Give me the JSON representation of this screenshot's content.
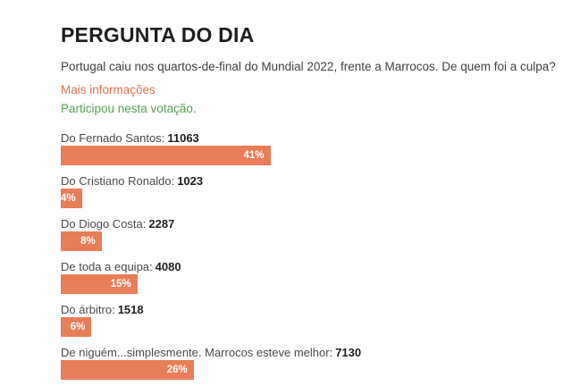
{
  "poll": {
    "title": "PERGUNTA DO DIA",
    "question": "Portugal caiu nos quartos-de-final do Mundial 2022, frente a Marrocos. De quem foi a culpa?",
    "more_info_label": "Mais informações",
    "participation_status": "Participou nesta votação.",
    "options": [
      {
        "label": "Do Fernado Santos:",
        "votes": "11063",
        "percent": 41,
        "percent_label": "41%"
      },
      {
        "label": "Do Cristiano Ronaldo:",
        "votes": "1023",
        "percent": 4,
        "percent_label": "4%"
      },
      {
        "label": "Do Diogo Costa:",
        "votes": "2287",
        "percent": 8,
        "percent_label": "8%"
      },
      {
        "label": "De toda a equipa:",
        "votes": "4080",
        "percent": 15,
        "percent_label": "15%"
      },
      {
        "label": "Do árbitro:",
        "votes": "1518",
        "percent": 6,
        "percent_label": "6%"
      },
      {
        "label": "De niguém...simplesmente. Marrocos esteve melhor:",
        "votes": "7130",
        "percent": 26,
        "percent_label": "26%"
      }
    ]
  },
  "colors": {
    "bar": "#e97d57",
    "link": "#e3704f",
    "status_green": "#56a156",
    "title_text": "#1f1f1f",
    "body_text": "#404040",
    "label_text": "#4a4a4a",
    "votes_text": "#1f1f1f",
    "percent_text": "#ffffff"
  },
  "chart_data": {
    "type": "bar",
    "orientation": "horizontal",
    "title": "PERGUNTA DO DIA",
    "subtitle": "Portugal caiu nos quartos-de-final do Mundial 2022, frente a Marrocos. De quem foi a culpa?",
    "categories": [
      "Do Fernado Santos",
      "Do Cristiano Ronaldo",
      "Do Diogo Costa",
      "De toda a equipa",
      "Do árbitro",
      "De niguém...simplesmente. Marrocos esteve melhor"
    ],
    "series": [
      {
        "name": "votes",
        "values": [
          11063,
          1023,
          2287,
          4080,
          1518,
          7130
        ]
      },
      {
        "name": "percent",
        "values": [
          41,
          4,
          8,
          15,
          6,
          26
        ]
      }
    ],
    "value_suffix": "%",
    "xlim": [
      0,
      100
    ],
    "grid": false,
    "legend": false,
    "bar_color": "#e97d57",
    "data_labels": "inside-end, white, bold"
  }
}
